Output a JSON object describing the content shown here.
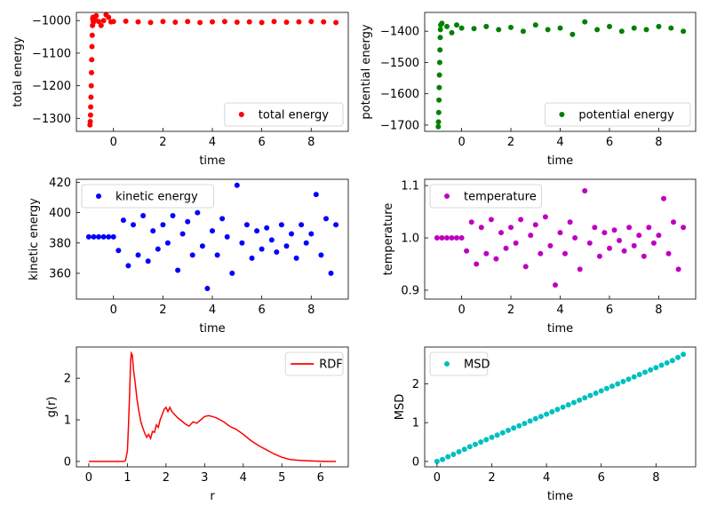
{
  "chart_data": [
    {
      "type": "scatter",
      "xlabel": "time",
      "ylabel": "total energy",
      "xlim": [
        -1.5,
        9.5
      ],
      "ylim": [
        -1340,
        -975
      ],
      "xticks": [
        0,
        2,
        4,
        6,
        8
      ],
      "yticks": [
        -1300,
        -1200,
        -1100,
        -1000
      ],
      "xtick_labels": [
        "0",
        "2",
        "4",
        "6",
        "8"
      ],
      "ytick_labels": [
        "−1300",
        "−1200",
        "−1100",
        "−1000"
      ],
      "legend": "lower right",
      "series": [
        {
          "name": "total energy",
          "color": "#ff0000",
          "x": [
            -0.95,
            -0.94,
            -0.93,
            -0.92,
            -0.91,
            -0.9,
            -0.89,
            -0.88,
            -0.87,
            -0.86,
            -0.85,
            -0.84,
            -0.83,
            -0.82,
            -0.81,
            -0.8,
            -0.78,
            -0.75,
            -0.7,
            -0.6,
            -0.5,
            -0.4,
            -0.3,
            -0.2,
            -0.1,
            0,
            0.5,
            1,
            1.5,
            2,
            2.5,
            3,
            3.5,
            4,
            4.5,
            5,
            5.5,
            6,
            6.5,
            7,
            7.5,
            8,
            8.5,
            9
          ],
          "y": [
            -1320,
            -1310,
            -1290,
            -1265,
            -1235,
            -1200,
            -1160,
            -1120,
            -1080,
            -1045,
            -1015,
            -995,
            -990,
            -1000,
            -1005,
            -998,
            -995,
            -992,
            -985,
            -1003,
            -1015,
            -1000,
            -982,
            -990,
            -1004,
            -1003,
            -1002,
            -1004,
            -1006,
            -1003,
            -1005,
            -1003,
            -1006,
            -1004,
            -1003,
            -1005,
            -1004,
            -1006,
            -1003,
            -1005,
            -1004,
            -1003,
            -1004,
            -1006
          ]
        }
      ]
    },
    {
      "type": "scatter",
      "xlabel": "time",
      "ylabel": "potential energy",
      "xlim": [
        -1.5,
        9.5
      ],
      "ylim": [
        -1720,
        -1340
      ],
      "xticks": [
        0,
        2,
        4,
        6,
        8
      ],
      "yticks": [
        -1700,
        -1600,
        -1500,
        -1400
      ],
      "xtick_labels": [
        "0",
        "2",
        "4",
        "6",
        "8"
      ],
      "ytick_labels": [
        "−1700",
        "−1600",
        "−1500",
        "−1400"
      ],
      "legend": "lower right",
      "series": [
        {
          "name": "potential energy",
          "color": "#008000",
          "x": [
            -0.95,
            -0.94,
            -0.93,
            -0.92,
            -0.91,
            -0.9,
            -0.89,
            -0.88,
            -0.87,
            -0.86,
            -0.85,
            -0.8,
            -0.6,
            -0.4,
            -0.2,
            0,
            0.5,
            1,
            1.5,
            2,
            2.5,
            3,
            3.5,
            4,
            4.5,
            5,
            5.5,
            6,
            6.5,
            7,
            7.5,
            8,
            8.5,
            9
          ],
          "y": [
            -1705,
            -1690,
            -1660,
            -1620,
            -1580,
            -1540,
            -1500,
            -1460,
            -1420,
            -1395,
            -1380,
            -1375,
            -1385,
            -1405,
            -1380,
            -1390,
            -1392,
            -1385,
            -1395,
            -1388,
            -1400,
            -1380,
            -1395,
            -1390,
            -1410,
            -1370,
            -1395,
            -1385,
            -1400,
            -1390,
            -1395,
            -1385,
            -1390,
            -1400
          ]
        }
      ]
    },
    {
      "type": "scatter",
      "xlabel": "time",
      "ylabel": "kinetic energy",
      "xlim": [
        -1.5,
        9.5
      ],
      "ylim": [
        343,
        422
      ],
      "xticks": [
        0,
        2,
        4,
        6,
        8
      ],
      "yticks": [
        360,
        380,
        400,
        420
      ],
      "xtick_labels": [
        "0",
        "2",
        "4",
        "6",
        "8"
      ],
      "ytick_labels": [
        "360",
        "380",
        "400",
        "420"
      ],
      "legend": "upper left",
      "series": [
        {
          "name": "kinetic energy",
          "color": "#0000ff",
          "x": [
            -1,
            -0.8,
            -0.6,
            -0.4,
            -0.2,
            0,
            0.2,
            0.4,
            0.6,
            0.8,
            1,
            1.2,
            1.4,
            1.6,
            1.8,
            2,
            2.2,
            2.4,
            2.6,
            2.8,
            3,
            3.2,
            3.4,
            3.6,
            3.8,
            4,
            4.2,
            4.4,
            4.6,
            4.8,
            5,
            5.2,
            5.4,
            5.6,
            5.8,
            6,
            6.2,
            6.4,
            6.6,
            6.8,
            7,
            7.2,
            7.4,
            7.6,
            7.8,
            8,
            8.2,
            8.4,
            8.6,
            8.8,
            9
          ],
          "y": [
            384,
            384,
            384,
            384,
            384,
            384,
            375,
            395,
            365,
            392,
            372,
            398,
            368,
            388,
            376,
            392,
            380,
            398,
            362,
            386,
            394,
            372,
            400,
            378,
            350,
            388,
            372,
            396,
            384,
            360,
            418,
            380,
            392,
            370,
            388,
            376,
            390,
            382,
            374,
            392,
            378,
            386,
            370,
            392,
            380,
            386,
            412,
            372,
            396,
            360,
            392
          ]
        }
      ]
    },
    {
      "type": "scatter",
      "xlabel": "time",
      "ylabel": "temperature",
      "xlim": [
        -1.5,
        9.5
      ],
      "ylim": [
        0.883,
        1.112
      ],
      "xticks": [
        0,
        2,
        4,
        6,
        8
      ],
      "yticks": [
        0.9,
        1.0,
        1.1
      ],
      "xtick_labels": [
        "0",
        "2",
        "4",
        "6",
        "8"
      ],
      "ytick_labels": [
        "0.9",
        "1.0",
        "1.1"
      ],
      "legend": "upper left",
      "series": [
        {
          "name": "temperature",
          "color": "#bf00bf",
          "x": [
            -1,
            -0.8,
            -0.6,
            -0.4,
            -0.2,
            0,
            0.2,
            0.4,
            0.6,
            0.8,
            1,
            1.2,
            1.4,
            1.6,
            1.8,
            2,
            2.2,
            2.4,
            2.6,
            2.8,
            3,
            3.2,
            3.4,
            3.6,
            3.8,
            4,
            4.2,
            4.4,
            4.6,
            4.8,
            5,
            5.2,
            5.4,
            5.6,
            5.8,
            6,
            6.2,
            6.4,
            6.6,
            6.8,
            7,
            7.2,
            7.4,
            7.6,
            7.8,
            8,
            8.2,
            8.4,
            8.6,
            8.8,
            9
          ],
          "y": [
            1.0,
            1.0,
            1.0,
            1.0,
            1.0,
            1.0,
            0.975,
            1.03,
            0.95,
            1.02,
            0.97,
            1.035,
            0.96,
            1.01,
            0.98,
            1.02,
            0.99,
            1.035,
            0.945,
            1.005,
            1.025,
            0.97,
            1.04,
            0.985,
            0.91,
            1.01,
            0.97,
            1.03,
            1.0,
            0.94,
            1.09,
            0.99,
            1.02,
            0.965,
            1.01,
            0.98,
            1.015,
            0.995,
            0.975,
            1.02,
            0.985,
            1.005,
            0.965,
            1.02,
            0.99,
            1.005,
            1.075,
            0.97,
            1.03,
            0.94,
            1.02
          ]
        }
      ]
    },
    {
      "type": "line",
      "xlabel": "r",
      "ylabel": "g(r)",
      "xlim": [
        -0.32,
        6.72
      ],
      "ylim": [
        -0.13,
        2.75
      ],
      "xticks": [
        0,
        1,
        2,
        3,
        4,
        5,
        6
      ],
      "yticks": [
        0,
        1,
        2
      ],
      "xtick_labels": [
        "0",
        "1",
        "2",
        "3",
        "4",
        "5",
        "6"
      ],
      "ytick_labels": [
        "0",
        "1",
        "2"
      ],
      "legend": "upper right",
      "series": [
        {
          "name": "RDF",
          "color": "#ff0000",
          "x": [
            0,
            0.9,
            0.95,
            1.0,
            1.03,
            1.06,
            1.08,
            1.1,
            1.13,
            1.16,
            1.2,
            1.25,
            1.3,
            1.35,
            1.4,
            1.45,
            1.5,
            1.55,
            1.6,
            1.65,
            1.7,
            1.75,
            1.8,
            1.85,
            1.9,
            1.95,
            2.0,
            2.05,
            2.1,
            2.15,
            2.2,
            2.3,
            2.4,
            2.5,
            2.6,
            2.7,
            2.8,
            2.9,
            3.0,
            3.1,
            3.2,
            3.3,
            3.4,
            3.5,
            3.6,
            3.7,
            3.8,
            3.9,
            4.0,
            4.2,
            4.4,
            4.6,
            4.8,
            5.0,
            5.2,
            5.4,
            5.6,
            5.8,
            6.0,
            6.2,
            6.4
          ],
          "y": [
            0,
            0,
            0.02,
            0.25,
            0.9,
            1.7,
            2.35,
            2.6,
            2.55,
            2.2,
            1.9,
            1.5,
            1.2,
            0.95,
            0.8,
            0.68,
            0.58,
            0.65,
            0.55,
            0.72,
            0.7,
            0.88,
            0.82,
            1.0,
            1.12,
            1.25,
            1.3,
            1.2,
            1.3,
            1.2,
            1.15,
            1.05,
            0.98,
            0.9,
            0.85,
            0.95,
            0.92,
            1.0,
            1.08,
            1.1,
            1.08,
            1.05,
            1.0,
            0.95,
            0.88,
            0.82,
            0.78,
            0.72,
            0.65,
            0.5,
            0.38,
            0.28,
            0.18,
            0.1,
            0.05,
            0.03,
            0.02,
            0.01,
            0.005,
            0,
            0
          ]
        }
      ]
    },
    {
      "type": "scatter",
      "xlabel": "time",
      "ylabel": "MSD",
      "xlim": [
        -0.45,
        9.45
      ],
      "ylim": [
        -0.14,
        2.95
      ],
      "xticks": [
        0,
        2,
        4,
        6,
        8
      ],
      "yticks": [
        0,
        1,
        2
      ],
      "xtick_labels": [
        "0",
        "2",
        "4",
        "6",
        "8"
      ],
      "ytick_labels": [
        "0",
        "1",
        "2"
      ],
      "legend": "upper left",
      "series": [
        {
          "name": "MSD",
          "color": "#00bfbf",
          "x": [
            0,
            0.2,
            0.4,
            0.6,
            0.8,
            1,
            1.2,
            1.4,
            1.6,
            1.8,
            2,
            2.2,
            2.4,
            2.6,
            2.8,
            3,
            3.2,
            3.4,
            3.6,
            3.8,
            4,
            4.2,
            4.4,
            4.6,
            4.8,
            5,
            5.2,
            5.4,
            5.6,
            5.8,
            6,
            6.2,
            6.4,
            6.6,
            6.8,
            7,
            7.2,
            7.4,
            7.6,
            7.8,
            8,
            8.2,
            8.4,
            8.6,
            8.8,
            9
          ],
          "y": [
            0,
            0.05,
            0.12,
            0.18,
            0.25,
            0.31,
            0.38,
            0.44,
            0.5,
            0.56,
            0.62,
            0.68,
            0.74,
            0.8,
            0.86,
            0.92,
            0.98,
            1.04,
            1.1,
            1.16,
            1.22,
            1.28,
            1.34,
            1.4,
            1.46,
            1.52,
            1.58,
            1.64,
            1.7,
            1.76,
            1.82,
            1.88,
            1.94,
            2.0,
            2.06,
            2.12,
            2.18,
            2.24,
            2.3,
            2.36,
            2.42,
            2.48,
            2.54,
            2.6,
            2.68,
            2.76
          ]
        }
      ]
    }
  ]
}
